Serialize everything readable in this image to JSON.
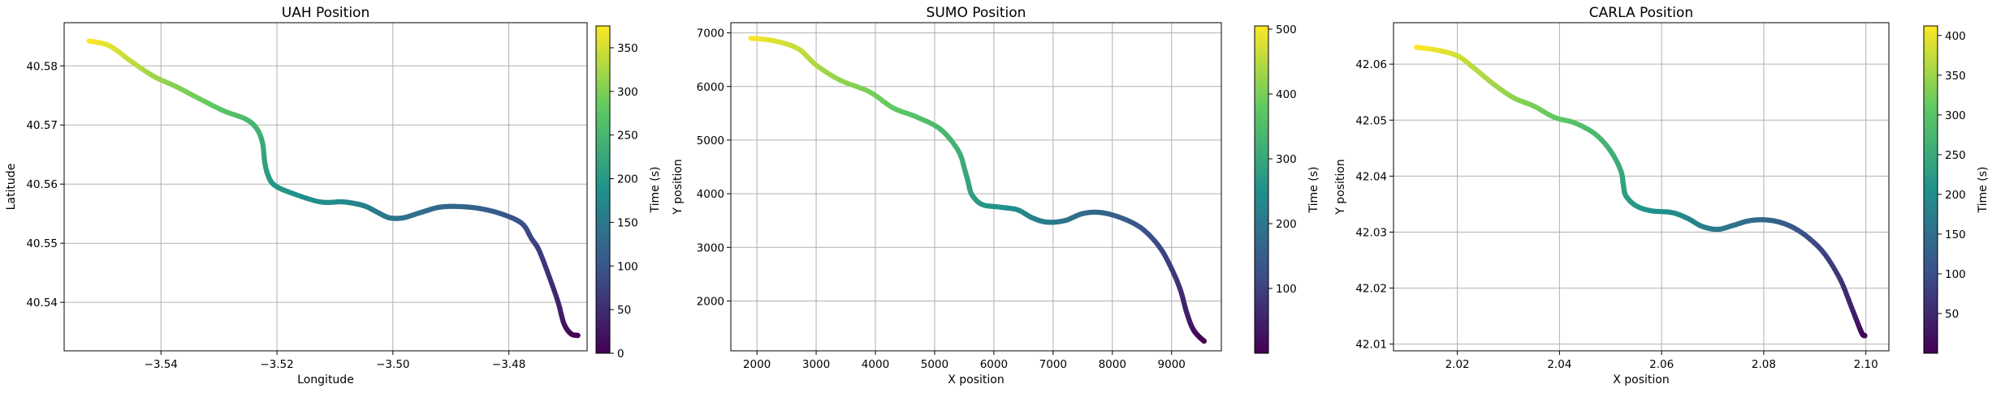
{
  "colormap": {
    "name": "viridis",
    "stops": [
      "#440154",
      "#3b528b",
      "#21918c",
      "#5ec962",
      "#fde725"
    ]
  },
  "chart_data": [
    {
      "type": "scatter",
      "title": "UAH Position",
      "xlabel": "Longitude",
      "ylabel": "Latitude",
      "xlim": [
        -3.5567,
        -3.4665
      ],
      "ylim": [
        40.5318,
        40.5873
      ],
      "xticks": [
        -3.54,
        -3.52,
        -3.5,
        -3.48
      ],
      "xtick_labels": [
        "−3.54",
        "−3.52",
        "−3.50",
        "−3.48"
      ],
      "yticks": [
        40.54,
        40.55,
        40.56,
        40.57,
        40.58
      ],
      "ytick_labels": [
        "40.54",
        "40.55",
        "40.56",
        "40.57",
        "40.58"
      ],
      "grid": true,
      "colorbar": {
        "label": "Time (s)",
        "range": [
          0,
          375
        ],
        "ticks": [
          0,
          50,
          100,
          150,
          200,
          250,
          300,
          350
        ],
        "tick_labels": [
          "0",
          "50",
          "100",
          "150",
          "200",
          "250",
          "300",
          "350"
        ]
      },
      "points": {
        "x": [
          -3.5524,
          -3.5489,
          -3.5452,
          -3.5412,
          -3.5374,
          -3.5333,
          -3.5292,
          -3.5254,
          -3.5235,
          -3.5225,
          -3.5221,
          -3.5215,
          -3.5204,
          -3.5175,
          -3.5126,
          -3.5088,
          -3.5065,
          -3.5046,
          -3.5026,
          -3.5006,
          -3.4982,
          -3.4952,
          -3.4919,
          -3.4884,
          -3.4846,
          -3.4808,
          -3.4777,
          -3.4761,
          -3.4748,
          -3.4731,
          -3.4715,
          -3.4705,
          -3.4693,
          -3.4681
        ],
        "y": [
          40.5842,
          40.5834,
          40.5808,
          40.5782,
          40.5765,
          40.5744,
          40.5724,
          40.571,
          40.5694,
          40.567,
          40.5637,
          40.5614,
          40.5598,
          40.5585,
          40.557,
          40.557,
          40.5567,
          40.5562,
          40.5552,
          40.5543,
          40.5543,
          40.5552,
          40.5561,
          40.5562,
          40.5558,
          40.5548,
          40.5533,
          40.5508,
          40.5488,
          40.5445,
          40.54,
          40.5364,
          40.5347,
          40.5344
        ],
        "t": [
          375,
          360,
          340,
          320,
          305,
          290,
          272,
          258,
          245,
          230,
          215,
          205,
          198,
          190,
          182,
          176,
          170,
          162,
          155,
          148,
          142,
          135,
          128,
          120,
          112,
          102,
          92,
          82,
          70,
          55,
          40,
          25,
          12,
          0
        ]
      }
    },
    {
      "type": "scatter",
      "title": "SUMO Position",
      "xlabel": "X position",
      "ylabel": "Y position",
      "xlim": [
        1560,
        9840
      ],
      "ylim": [
        1070,
        7190
      ],
      "xticks": [
        2000,
        3000,
        4000,
        5000,
        6000,
        7000,
        8000,
        9000
      ],
      "xtick_labels": [
        "2000",
        "3000",
        "4000",
        "5000",
        "6000",
        "7000",
        "8000",
        "9000"
      ],
      "yticks": [
        2000,
        3000,
        4000,
        5000,
        6000,
        7000
      ],
      "ytick_labels": [
        "2000",
        "3000",
        "4000",
        "5000",
        "6000",
        "7000"
      ],
      "grid": true,
      "colorbar": {
        "label": "Time (s)",
        "range": [
          0,
          505
        ],
        "ticks": [
          100,
          200,
          300,
          400,
          500
        ],
        "tick_labels": [
          "100",
          "200",
          "300",
          "400",
          "500"
        ]
      },
      "points": {
        "x": [
          1900,
          2300,
          2700,
          3000,
          3400,
          3900,
          4300,
          4700,
          5100,
          5400,
          5520,
          5570,
          5630,
          5800,
          6100,
          6400,
          6650,
          6900,
          7200,
          7500,
          7800,
          8150,
          8500,
          8800,
          9000,
          9150,
          9250,
          9350,
          9450,
          9550
        ],
        "y": [
          6900,
          6850,
          6700,
          6400,
          6120,
          5900,
          5600,
          5430,
          5200,
          4800,
          4400,
          4200,
          3980,
          3800,
          3750,
          3700,
          3550,
          3470,
          3500,
          3630,
          3650,
          3550,
          3350,
          3000,
          2600,
          2200,
          1800,
          1500,
          1350,
          1250
        ],
        "t": [
          505,
          480,
          460,
          440,
          420,
          400,
          380,
          360,
          340,
          320,
          305,
          295,
          285,
          270,
          255,
          240,
          225,
          210,
          195,
          180,
          165,
          150,
          130,
          110,
          90,
          70,
          50,
          30,
          15,
          0
        ]
      }
    },
    {
      "type": "scatter",
      "title": "CARLA Position",
      "xlabel": "X position",
      "ylabel": "Y position",
      "xlim": [
        2.0075,
        2.1045
      ],
      "ylim": [
        42.0088,
        42.0674
      ],
      "xticks": [
        2.02,
        2.04,
        2.06,
        2.08,
        2.1
      ],
      "xtick_labels": [
        "2.02",
        "2.04",
        "2.06",
        "2.08",
        "2.10"
      ],
      "yticks": [
        42.01,
        42.02,
        42.03,
        42.04,
        42.05,
        42.06
      ],
      "ytick_labels": [
        "42.01",
        "42.02",
        "42.03",
        "42.04",
        "42.05",
        "42.06"
      ],
      "grid": true,
      "colorbar": {
        "label": "Time (s)",
        "range": [
          0,
          412
        ],
        "ticks": [
          50,
          100,
          150,
          200,
          250,
          300,
          350,
          400
        ],
        "tick_labels": [
          "50",
          "100",
          "150",
          "200",
          "250",
          "300",
          "350",
          "400"
        ]
      },
      "points": {
        "x": [
          2.012,
          2.016,
          2.02,
          2.023,
          2.027,
          2.031,
          2.035,
          2.039,
          2.043,
          2.047,
          2.05,
          2.052,
          2.0525,
          2.053,
          2.055,
          2.058,
          2.062,
          2.065,
          2.068,
          2.071,
          2.074,
          2.077,
          2.08,
          2.083,
          2.086,
          2.089,
          2.092,
          2.095,
          2.097,
          2.0985,
          2.0993,
          2.0998
        ],
        "y": [
          42.063,
          42.0625,
          42.0615,
          42.0595,
          42.0565,
          42.054,
          42.0525,
          42.0505,
          42.0495,
          42.0475,
          42.0445,
          42.041,
          42.0385,
          42.0365,
          42.0347,
          42.0338,
          42.0335,
          42.0325,
          42.031,
          42.0305,
          42.0312,
          42.032,
          42.0322,
          42.0318,
          42.0307,
          42.0288,
          42.026,
          42.0215,
          42.017,
          42.0135,
          42.0118,
          42.0115
        ],
        "t": [
          412,
          400,
          385,
          370,
          355,
          340,
          325,
          310,
          295,
          280,
          265,
          250,
          238,
          228,
          218,
          208,
          198,
          188,
          178,
          168,
          158,
          148,
          138,
          125,
          112,
          98,
          82,
          65,
          45,
          25,
          10,
          0
        ]
      }
    }
  ]
}
